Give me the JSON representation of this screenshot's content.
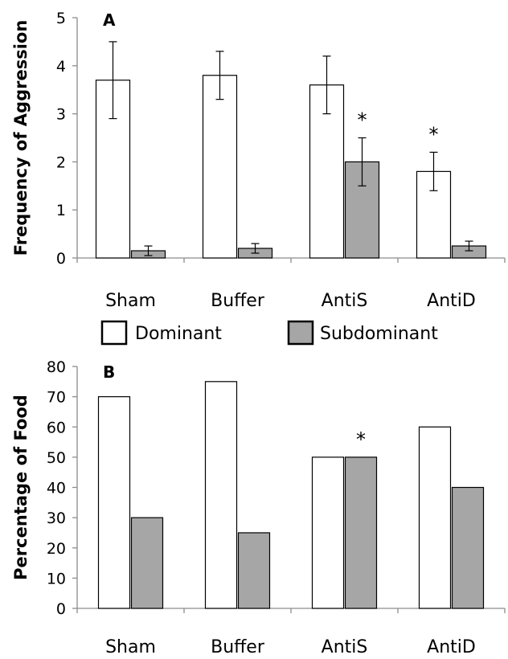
{
  "chart_data": [
    {
      "type": "bar",
      "panel_label": "A",
      "ylabel": "Frequency of Aggression",
      "categories": [
        "Sham",
        "Buffer",
        "AntiS",
        "AntiD"
      ],
      "ylim": [
        0,
        5
      ],
      "yticks": [
        "0",
        "1",
        "2",
        "3",
        "4",
        "5"
      ],
      "series": [
        {
          "name": "Dominant",
          "color": "#ffffff",
          "values": [
            3.7,
            3.8,
            3.6,
            1.8
          ],
          "errors": [
            0.8,
            0.5,
            0.6,
            0.4
          ]
        },
        {
          "name": "Subdominant",
          "color": "#a6a6a6",
          "values": [
            0.15,
            0.2,
            2.0,
            0.25
          ],
          "errors": [
            0.1,
            0.1,
            0.5,
            0.1
          ]
        }
      ],
      "annotations": [
        {
          "text": "*",
          "category": "AntiS",
          "series": "Subdominant"
        },
        {
          "text": "*",
          "category": "AntiD",
          "series": "Dominant"
        }
      ],
      "grid": false
    },
    {
      "type": "bar",
      "panel_label": "B",
      "ylabel": "Percentage of Food",
      "categories": [
        "Sham",
        "Buffer",
        "AntiS",
        "AntiD"
      ],
      "ylim": [
        0,
        80
      ],
      "yticks": [
        "0",
        "10",
        "20",
        "30",
        "40",
        "50",
        "60",
        "70",
        "80"
      ],
      "series": [
        {
          "name": "Dominant",
          "color": "#ffffff",
          "values": [
            70,
            75,
            50,
            60
          ]
        },
        {
          "name": "Subdominant",
          "color": "#a6a6a6",
          "values": [
            30,
            25,
            50,
            40
          ]
        }
      ],
      "annotations": [
        {
          "text": "*",
          "category": "AntiS",
          "series": "Subdominant"
        }
      ],
      "grid": false
    }
  ],
  "legend": {
    "position": "between-panels",
    "items": [
      {
        "label": "Dominant",
        "color": "#ffffff"
      },
      {
        "label": "Subdominant",
        "color": "#a6a6a6"
      }
    ]
  }
}
